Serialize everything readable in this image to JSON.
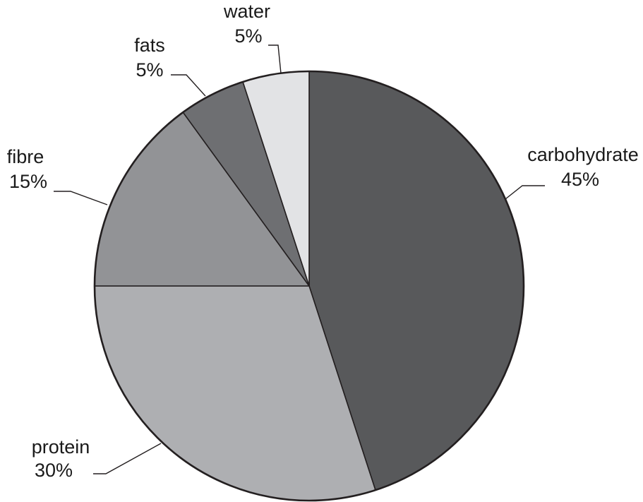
{
  "chart_data": {
    "type": "pie",
    "title": "",
    "start_angle_deg": 0,
    "direction": "clockwise",
    "slices": [
      {
        "name": "carbohydrate",
        "value": 45,
        "label": "45%",
        "color": "#58595b"
      },
      {
        "name": "protein",
        "value": 30,
        "label": "30%",
        "color": "#aeafb2"
      },
      {
        "name": "fibre",
        "value": 15,
        "label": "15%",
        "color": "#929396"
      },
      {
        "name": "fats",
        "value": 5,
        "label": "5%",
        "color": "#6e6f72"
      },
      {
        "name": "water",
        "value": 5,
        "label": "5%",
        "color": "#e2e3e5"
      }
    ],
    "legend": "none",
    "labels_placement": "outside-with-leader-lines",
    "outline_color": "#231f20"
  }
}
